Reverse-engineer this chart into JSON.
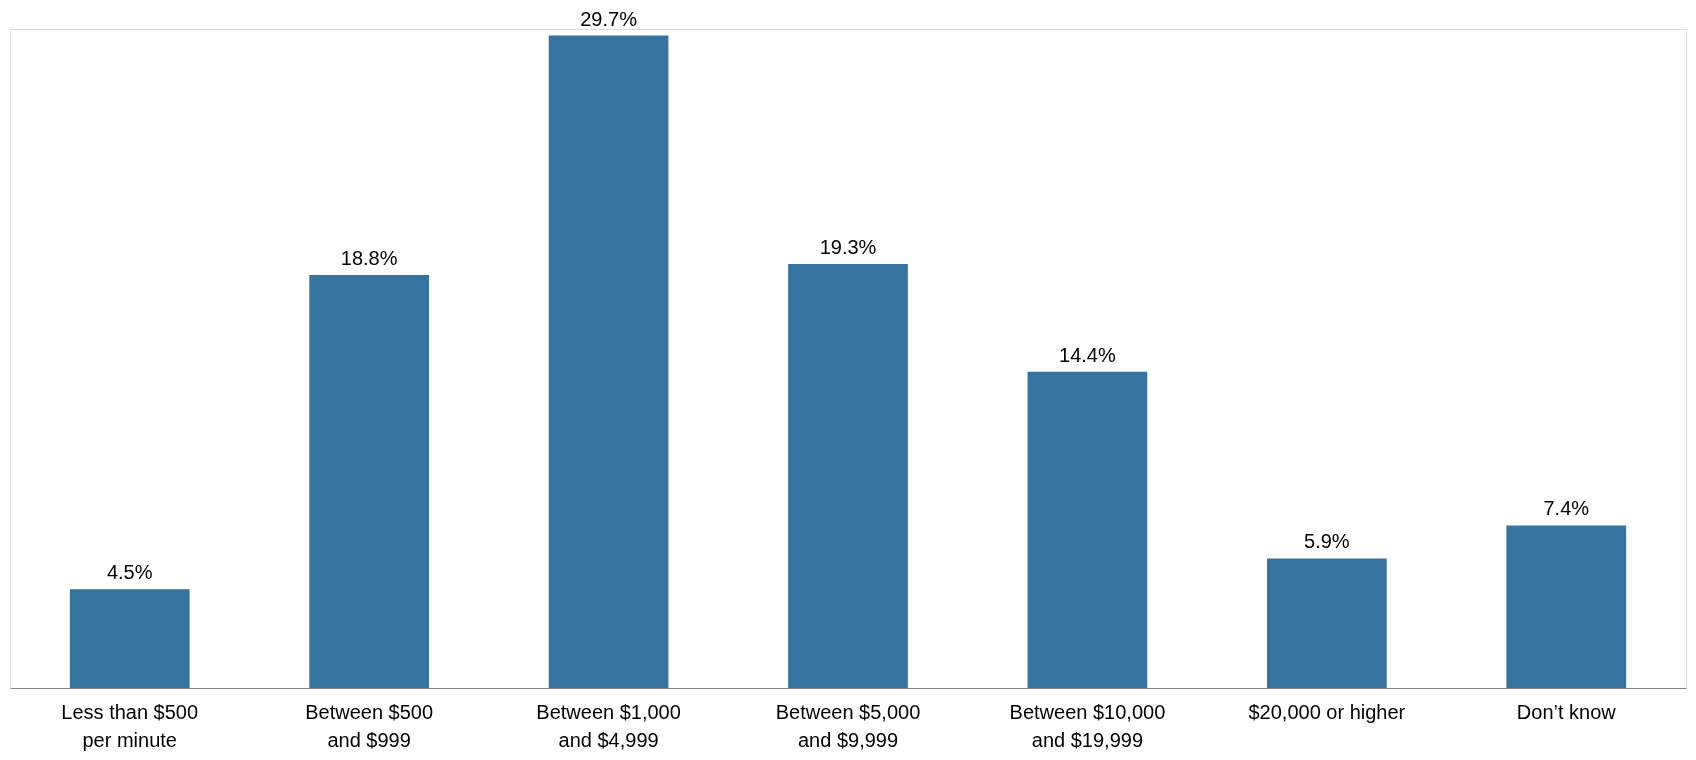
{
  "chart_data": {
    "type": "bar",
    "categories": [
      "Less than $500\nper minute",
      "Between $500\nand $999",
      "Between $1,000\nand $4,999",
      "Between $5,000\nand $9,999",
      "Between $10,000\nand $19,999",
      "$20,000 or higher",
      "Don’t know"
    ],
    "values": [
      4.5,
      18.8,
      29.7,
      19.3,
      14.4,
      5.9,
      7.4
    ],
    "value_labels": [
      "4.5%",
      "18.8%",
      "29.7%",
      "19.3%",
      "14.4%",
      "5.9%",
      "7.4%"
    ],
    "color": "#36739e"
  }
}
